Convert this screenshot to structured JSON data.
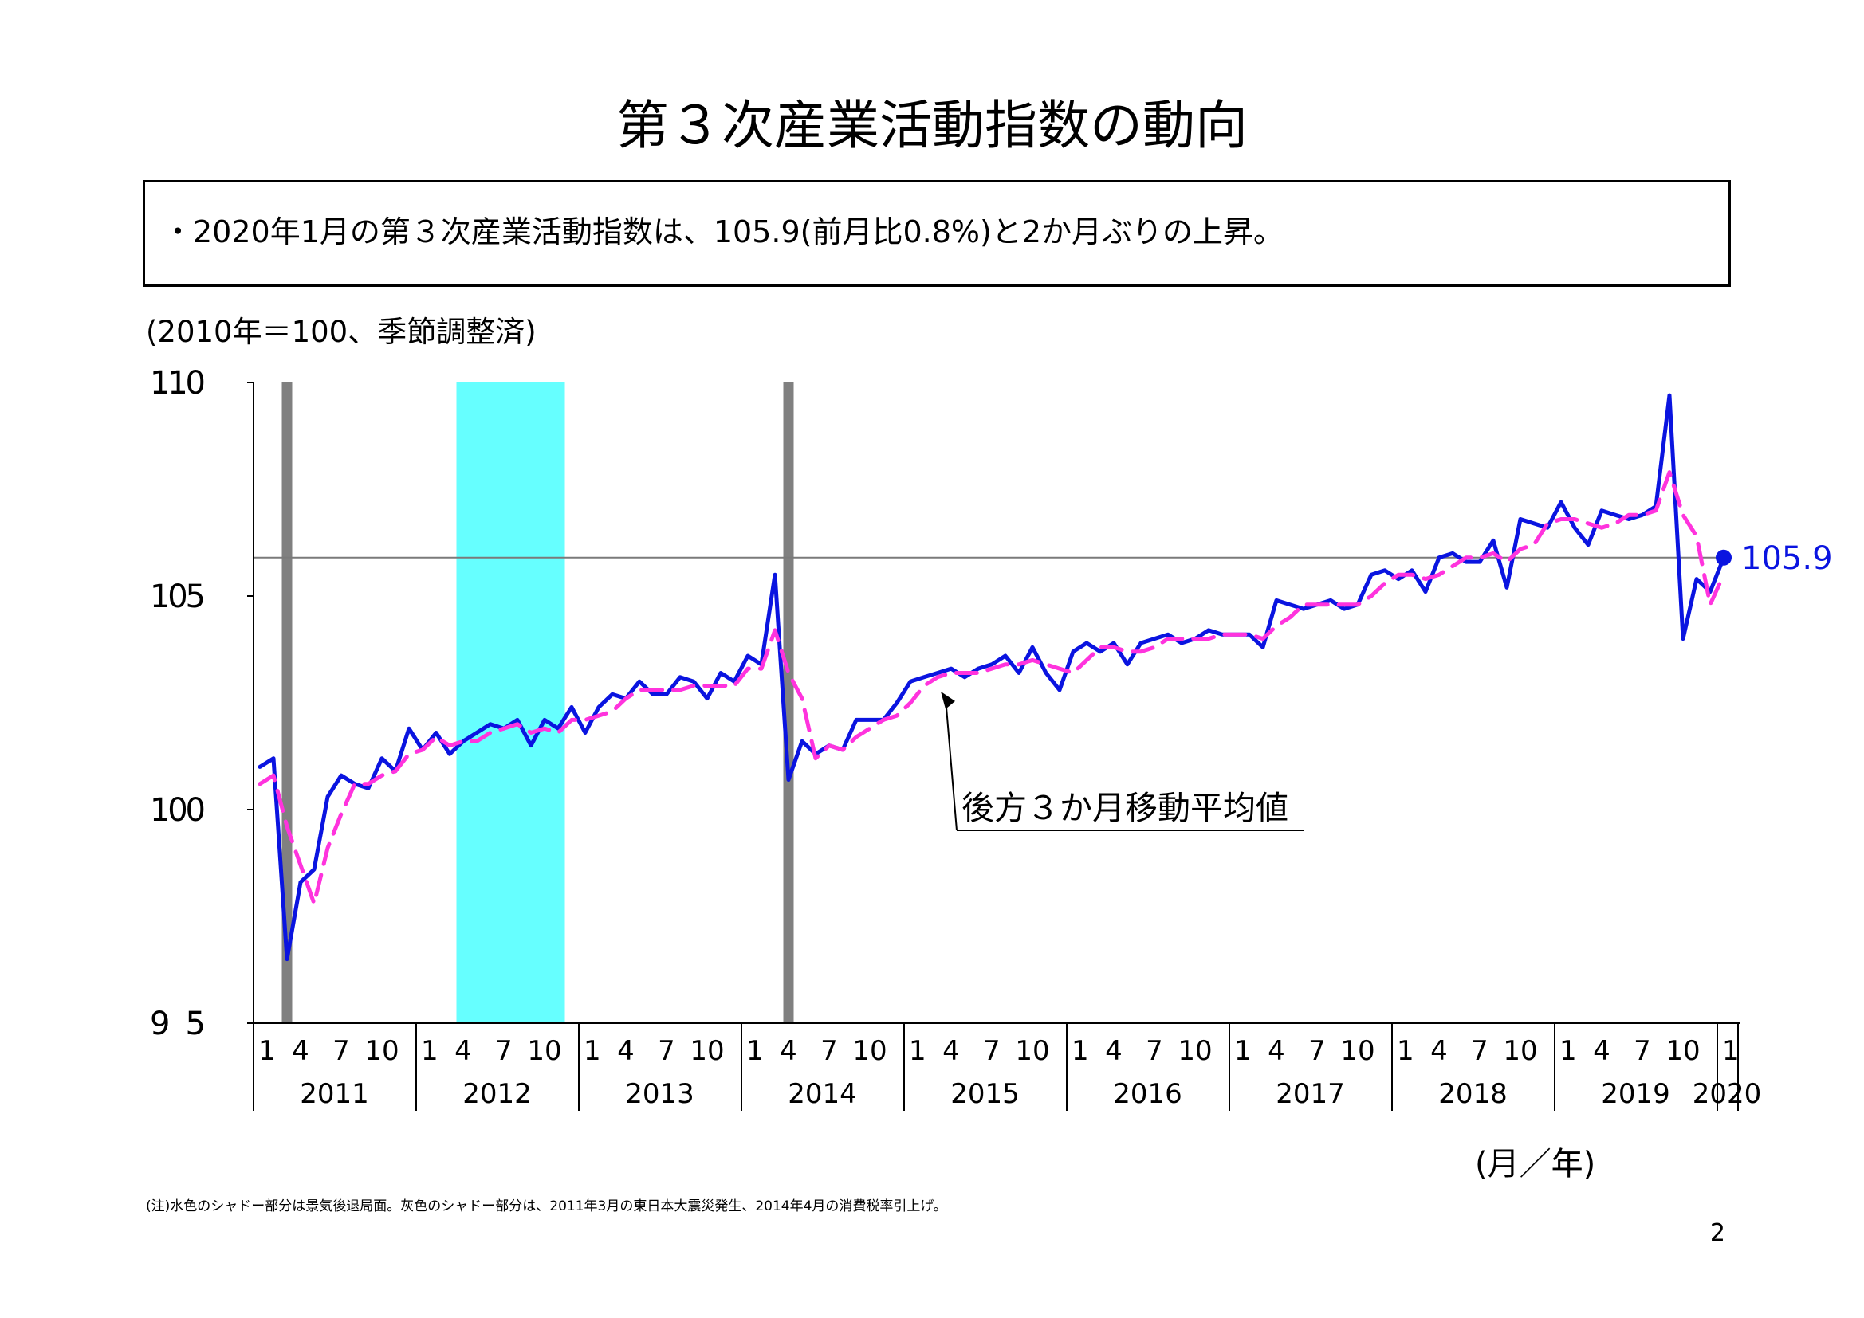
{
  "page": {
    "title": "第３次産業活動指数の動向",
    "summary": "・2020年1月の第３次産業活動指数は、105.9(前月比0.8%)と2か月ぶりの上昇。",
    "unit_note": "(2010年＝100、季節調整済)",
    "axis_unit": "(月／年)",
    "footnote": "(注)水色のシャドー部分は景気後退局面。灰色のシャドー部分は、2011年3月の東日本大震災発生、2014年4月の消費税率引上げ。",
    "page_number": "2"
  },
  "chart_data": {
    "type": "line",
    "title": "",
    "ylim": [
      95,
      110
    ],
    "y_ticks": [
      "95",
      "100",
      "105",
      "110"
    ],
    "month_tick_labels": [
      "1",
      "4",
      "7",
      "10"
    ],
    "years": [
      "2011",
      "2012",
      "2013",
      "2014",
      "2015",
      "2016",
      "2017",
      "2018",
      "2019",
      "2020"
    ],
    "x_start": "2011-01",
    "x_end": "2020-01",
    "reference_line": 105.9,
    "last_value": 105.9,
    "last_value_label": "105.9",
    "annotation": "後方３か月移動平均値",
    "annotation_target": "2015-03",
    "series": [
      {
        "name": "",
        "style": "solid",
        "color": "#0a14e0",
        "values": [
          101.0,
          101.2,
          96.5,
          98.3,
          98.6,
          100.3,
          100.8,
          100.6,
          100.5,
          101.2,
          100.9,
          101.9,
          101.4,
          101.8,
          101.3,
          101.6,
          101.8,
          102.0,
          101.9,
          102.1,
          101.5,
          102.1,
          101.9,
          102.4,
          101.8,
          102.4,
          102.7,
          102.6,
          103.0,
          102.7,
          102.7,
          103.1,
          103.0,
          102.6,
          103.2,
          103.0,
          103.6,
          103.4,
          105.5,
          100.7,
          101.6,
          101.3,
          101.5,
          101.4,
          102.1,
          102.1,
          102.1,
          102.5,
          103.0,
          103.1,
          103.2,
          103.3,
          103.1,
          103.3,
          103.4,
          103.6,
          103.2,
          103.8,
          103.2,
          102.8,
          103.7,
          103.9,
          103.7,
          103.9,
          103.4,
          103.9,
          104.0,
          104.1,
          103.9,
          104.0,
          104.2,
          104.1,
          104.1,
          104.1,
          103.8,
          104.9,
          104.8,
          104.7,
          104.8,
          104.9,
          104.7,
          104.8,
          105.5,
          105.6,
          105.4,
          105.6,
          105.1,
          105.9,
          106.0,
          105.8,
          105.8,
          106.3,
          105.2,
          106.8,
          106.7,
          106.6,
          107.2,
          106.6,
          106.2,
          107.0,
          106.9,
          106.8,
          106.9,
          107.1,
          109.7,
          104.0,
          105.4,
          105.1,
          105.9
        ]
      },
      {
        "name": "後方３か月移動平均値",
        "style": "dashed",
        "color": "#ff33dd",
        "values": [
          100.6,
          100.8,
          99.6,
          98.7,
          97.8,
          99.1,
          99.9,
          100.6,
          100.6,
          100.8,
          100.9,
          101.3,
          101.4,
          101.7,
          101.5,
          101.6,
          101.6,
          101.8,
          101.9,
          102.0,
          101.8,
          101.9,
          101.8,
          102.1,
          102.1,
          102.2,
          102.3,
          102.6,
          102.8,
          102.8,
          102.8,
          102.8,
          102.9,
          102.9,
          102.9,
          102.9,
          103.3,
          103.3,
          104.2,
          103.2,
          102.6,
          101.2,
          101.5,
          101.4,
          101.7,
          101.9,
          102.1,
          102.2,
          102.5,
          102.9,
          103.1,
          103.2,
          103.2,
          103.2,
          103.3,
          103.4,
          103.4,
          103.5,
          103.4,
          103.3,
          103.2,
          103.5,
          103.8,
          103.8,
          103.7,
          103.7,
          103.8,
          104.0,
          104.0,
          104.0,
          104.0,
          104.1,
          104.1,
          104.1,
          104.0,
          104.3,
          104.5,
          104.8,
          104.8,
          104.8,
          104.8,
          104.8,
          105.0,
          105.3,
          105.5,
          105.5,
          105.4,
          105.5,
          105.7,
          105.9,
          105.9,
          106.0,
          105.8,
          106.1,
          106.2,
          106.7,
          106.8,
          106.8,
          106.7,
          106.6,
          106.7,
          106.9,
          106.9,
          107.0,
          107.9,
          106.9,
          106.4,
          104.8,
          105.5
        ]
      }
    ],
    "shaded_periods": [
      {
        "kind": "earthquake",
        "color": "#808080",
        "from": "2011-03",
        "to": "2011-03"
      },
      {
        "kind": "recession",
        "color": "#66ffff",
        "from": "2012-04",
        "to": "2012-11"
      },
      {
        "kind": "tax-increase",
        "color": "#808080",
        "from": "2014-04",
        "to": "2014-04"
      }
    ]
  }
}
